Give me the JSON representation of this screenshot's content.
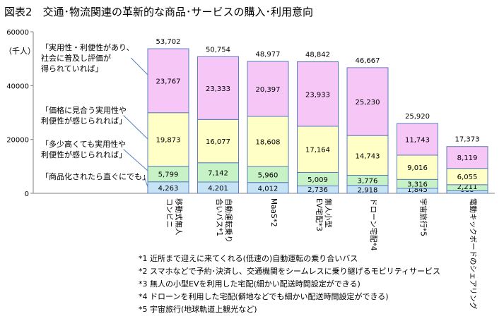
{
  "title": "図表2　交通･物流関連の革新的な商品･サービスの購入･利用意向",
  "chart_data": {
    "type": "bar",
    "stacked": true,
    "ylabel": "（千人）",
    "ylim": [
      0,
      60000
    ],
    "yticks": [
      0,
      20000,
      40000,
      60000
    ],
    "grid": false,
    "categories": [
      [
        "移動式無人",
        "コンビニ"
      ],
      [
        "自動運転乗り",
        "合いバス*1"
      ],
      [
        "MaaS*2"
      ],
      [
        "無人小型",
        "EV宅配*3"
      ],
      [
        "ドローン宅配*4"
      ],
      [
        "宇宙旅行*5"
      ],
      [
        "電動キックボードのシェアリング"
      ]
    ],
    "totals": [
      53702,
      50754,
      48977,
      48842,
      46667,
      25920,
      17373
    ],
    "series": [
      {
        "name": "「商品化されたら直ぐにでも」",
        "color": "#c6e3f5",
        "values": [
          4263,
          4201,
          4012,
          2736,
          2918,
          1845,
          988
        ]
      },
      {
        "name": "「多少高くても実用性や利便性が感じられれば」",
        "color": "#c6f2c6",
        "values": [
          5799,
          7142,
          5960,
          5009,
          3776,
          3316,
          2211
        ]
      },
      {
        "name": "「価格に見合う実用性や利便性が感じられれば」",
        "color": "#ffffc6",
        "values": [
          19873,
          16077,
          18608,
          17164,
          14743,
          9016,
          6055
        ]
      },
      {
        "name": "「実用性・利便性があり、社会に普及し評価が得られていれば」",
        "color": "#f6c6f6",
        "values": [
          23767,
          23333,
          20397,
          23933,
          25230,
          11743,
          8119
        ]
      }
    ],
    "legend_lines": [
      [
        "「商品化されたら直ぐにでも」"
      ],
      [
        "「多少高くても実用性や",
        "利便性が感じられれば」"
      ],
      [
        "「価格に見合う実用性や",
        "利便性が感じられれば」"
      ],
      [
        "「実用性・利便性があり、",
        "社会に普及し評価が",
        "得られていれば」"
      ]
    ]
  },
  "footnotes": [
    "*1 近所まで迎えに来てくれる(低速の)自動運転の乗り合いバス",
    "*2 スマホなどで予約･決済し、交通機関をシームレスに乗り継げるモビリティサービス",
    "*3 無人の小型EVを利用した宅配(細かい配送時間設定ができる)",
    "*4 ドローンを利用した宅配(僻地などでも細かい配送時間設定ができる)",
    "*5 宇宙旅行(地球軌道上観光など)"
  ]
}
